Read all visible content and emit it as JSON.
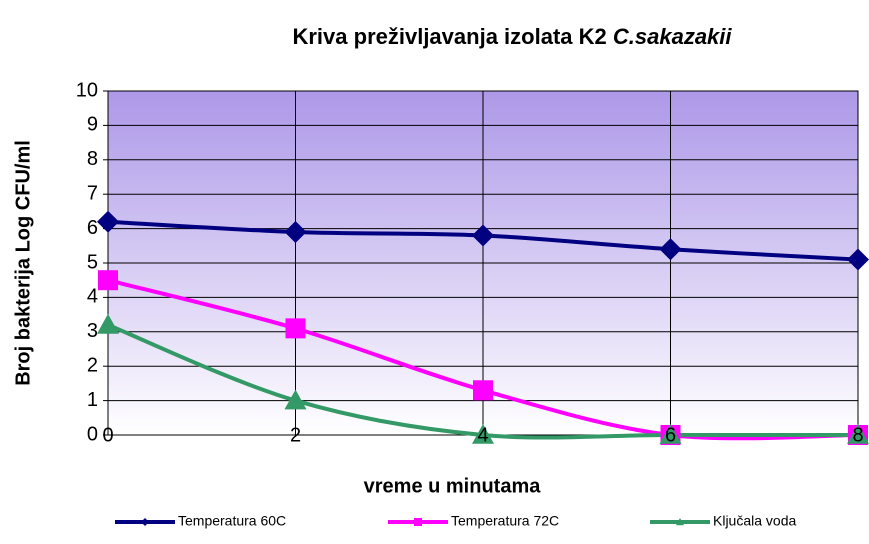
{
  "chart_data": {
    "type": "line",
    "title": "Kriva preživljavanja izolata K2",
    "title_italic": "C.sakazakii",
    "x_label": "vreme u minutama",
    "y_label": "Broj bakterija Log CFU/ml",
    "x": [
      0,
      2,
      4,
      6,
      8
    ],
    "xlim": [
      0,
      8
    ],
    "xticks": [
      0,
      2,
      4,
      6,
      8
    ],
    "ylim": [
      0,
      10
    ],
    "yticks": [
      0,
      1,
      2,
      3,
      4,
      5,
      6,
      7,
      8,
      9,
      10
    ],
    "grid": true,
    "legend": "bottom",
    "series": [
      {
        "name": "Temperatura 60C",
        "color": "#000080",
        "marker": "diamond",
        "values": [
          6.2,
          5.9,
          5.8,
          5.4,
          5.1
        ]
      },
      {
        "name": "Temperatura 72C",
        "color": "#ff00ff",
        "marker": "square",
        "values": [
          4.5,
          3.1,
          1.3,
          0,
          0
        ]
      },
      {
        "name": "Ključala voda",
        "color": "#339966",
        "marker": "triangle",
        "values": [
          3.2,
          1.0,
          0,
          0,
          0
        ]
      }
    ]
  }
}
